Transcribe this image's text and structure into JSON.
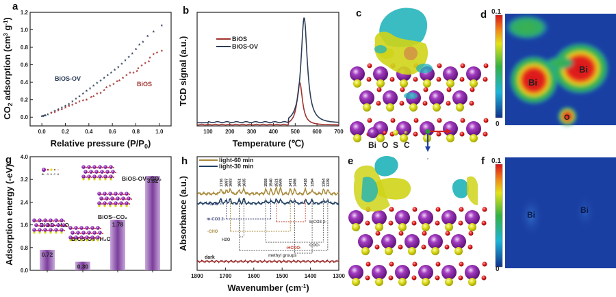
{
  "panels": {
    "a": "a",
    "b": "b",
    "c": "c",
    "d": "d",
    "e": "e",
    "f": "f",
    "g": "g",
    "h": "h"
  },
  "colors": {
    "bios": "#a1322e",
    "bios_ov": "#2b3d58",
    "light60": "#a8893a",
    "light30": "#1f3e61",
    "dark": "#9b2a2a",
    "bar": "#8f5aa8",
    "bi_atom": "#8a2a9e",
    "o_atom": "#e01b1b",
    "s_atom": "#d6d60f",
    "c_atom": "#8f6a4a",
    "iso_cyan": "#1fb3b9",
    "iso_yellow": "#cfd418",
    "map_bg": "#1a3fa3"
  },
  "chart_data": [
    {
      "id": "a",
      "type": "scatter",
      "title": "",
      "xlabel": "Relative pressure (P/P0)",
      "ylabel": "CO2 adsorption (cm3 g-1)",
      "xlim": [
        -0.1,
        1.1
      ],
      "ylim": [
        -0.1,
        1.2
      ],
      "xticks": [
        0.0,
        0.2,
        0.4,
        0.6,
        0.8,
        1.0
      ],
      "xtick_labels": [
        "0.0",
        "0.2",
        "0.4",
        "0.6",
        "0.8",
        "1.0"
      ],
      "yticks": [
        0.0,
        0.2,
        0.4,
        0.6,
        0.8,
        1.0,
        1.2
      ],
      "ytick_labels": [
        "0.0",
        "0.2",
        "0.4",
        "0.6",
        "0.8",
        "1.0",
        "1.2"
      ],
      "annotations": [
        "BiOS-OV",
        "BiOS"
      ],
      "series": [
        {
          "name": "BiOS-OV",
          "marker": "star",
          "x": [
            0.0,
            0.01,
            0.02,
            0.03,
            0.05,
            0.08,
            0.11,
            0.14,
            0.17,
            0.2,
            0.23,
            0.26,
            0.29,
            0.32,
            0.35,
            0.38,
            0.41,
            0.44,
            0.47,
            0.5,
            0.53,
            0.56,
            0.59,
            0.62,
            0.65,
            0.68,
            0.71,
            0.74,
            0.77,
            0.8,
            0.83,
            0.86,
            0.9,
            0.95,
            1.02
          ],
          "y": [
            0.0,
            0.0,
            0.01,
            0.01,
            0.02,
            0.04,
            0.06,
            0.08,
            0.1,
            0.12,
            0.14,
            0.17,
            0.2,
            0.23,
            0.26,
            0.29,
            0.32,
            0.35,
            0.38,
            0.41,
            0.44,
            0.47,
            0.5,
            0.53,
            0.56,
            0.6,
            0.64,
            0.68,
            0.72,
            0.77,
            0.82,
            0.85,
            0.92,
            0.97,
            1.04
          ]
        },
        {
          "name": "BiOS",
          "marker": "star",
          "x": [
            0.08,
            0.11,
            0.14,
            0.17,
            0.2,
            0.23,
            0.26,
            0.29,
            0.32,
            0.35,
            0.38,
            0.42,
            0.44,
            0.47,
            0.5,
            0.53,
            0.55,
            0.58,
            0.61,
            0.64,
            0.66,
            0.69,
            0.72,
            0.75,
            0.78,
            0.81,
            0.82,
            0.85,
            0.88,
            0.91,
            0.92,
            0.95,
            0.98,
            1.02
          ],
          "y": [
            0.04,
            0.05,
            0.07,
            0.08,
            0.1,
            0.12,
            0.13,
            0.15,
            0.17,
            0.18,
            0.19,
            0.22,
            0.23,
            0.26,
            0.27,
            0.3,
            0.33,
            0.35,
            0.37,
            0.4,
            0.41,
            0.44,
            0.47,
            0.5,
            0.5,
            0.52,
            0.55,
            0.58,
            0.61,
            0.63,
            0.67,
            0.71,
            0.73,
            0.75
          ]
        }
      ]
    },
    {
      "id": "b",
      "type": "line",
      "title": "",
      "xlabel": "Temperature (℃)",
      "ylabel": "TCD signal (a.u.)",
      "xlim": [
        50,
        700
      ],
      "ylim": [
        0,
        1.05
      ],
      "xticks": [
        100,
        200,
        300,
        400,
        500,
        600,
        700
      ],
      "xtick_labels": [
        "100",
        "200",
        "300",
        "400",
        "500",
        "600",
        "700"
      ],
      "legend": [
        "BiOS",
        "BiOS-OV"
      ],
      "legend_position": "top-left",
      "series": [
        {
          "name": "BiOS",
          "peak_center": 521,
          "peak_height": 0.39,
          "peak_width": 17,
          "baseline": 0.01
        },
        {
          "name": "BiOS-OV",
          "peak_center": 541,
          "peak_height": 0.97,
          "peak_width": 20,
          "baseline": 0.03
        }
      ]
    },
    {
      "id": "g",
      "type": "bar",
      "title": "",
      "xlabel": "",
      "ylabel": "Adsorption energy (-eV)",
      "ylim": [
        0,
        4.0
      ],
      "yticks": [
        0.0,
        0.8,
        1.6,
        2.4,
        3.2,
        4.0
      ],
      "ytick_labels": [
        "0.0",
        "0.8",
        "1.6",
        "2.4",
        "3.2",
        "4.0"
      ],
      "categories": [
        "BiOS··H2O",
        "BiOS-OV··H2O",
        "BiOS··CO2",
        "BiOS-OV··CO2"
      ],
      "values": [
        0.72,
        0.3,
        1.78,
        3.32
      ],
      "data_labels": [
        "0.72",
        "0.30",
        "1.78",
        "3.32"
      ],
      "inset_legend": [
        "Bi",
        "O",
        "S",
        "C",
        "H"
      ]
    },
    {
      "id": "h",
      "type": "line",
      "title": "",
      "xlabel": "Wavenumber (cm-1)",
      "ylabel": "Absorbance (a.u.)",
      "xlim": [
        1800,
        1300
      ],
      "xticks": [
        1800,
        1700,
        1600,
        1500,
        1400,
        1300
      ],
      "xtick_labels": [
        "1800",
        "1700",
        "1600",
        "1500",
        "1400",
        "1300"
      ],
      "legend": [
        "light-60 min",
        "light-30 min"
      ],
      "legend_position": "top-left",
      "series": [
        {
          "name": "light-60 min",
          "offset": 0.72
        },
        {
          "name": "light-30 min",
          "offset": 0.58
        },
        {
          "name": "dark",
          "offset": 0.07
        }
      ],
      "peak_labels": [
        "1716",
        "1697",
        "1683",
        "1651",
        "1635",
        "1558",
        "1540",
        "1521",
        "1506",
        "1471",
        "1456",
        "1418",
        "1394",
        "1354",
        "1339"
      ],
      "peak_positions": [
        1716,
        1697,
        1683,
        1651,
        1635,
        1558,
        1540,
        1521,
        1506,
        1471,
        1456,
        1418,
        1394,
        1354,
        1339
      ],
      "assignments": [
        {
          "label": "C=O",
          "peaks": [
            1716
          ],
          "color": "#3a3f78"
        },
        {
          "label": "m-CO3 2-",
          "peaks": [
            1697,
            1540
          ],
          "color": "#3a3f78"
        },
        {
          "label": "-CHO",
          "peaks": [
            1683,
            1471
          ],
          "color": "#a8893a"
        },
        {
          "label": "H2O",
          "peaks": [
            1651,
            1635
          ],
          "color": "#555"
        },
        {
          "label": "b-CO3 2-",
          "peaks": [
            1651,
            1339
          ],
          "color": "#555"
        },
        {
          "label": "-HCOO-",
          "peaks": [
            1521,
            1418
          ],
          "color": "#c03a2a"
        },
        {
          "label": "COO-",
          "peaks": [
            1558,
            1354
          ],
          "color": "#555"
        },
        {
          "label": "methyl groups",
          "peaks": [
            1456,
            1394
          ],
          "color": "#555"
        }
      ],
      "dark_label": "dark"
    }
  ],
  "structure_legend": {
    "labels": [
      "Bi",
      "O",
      "S",
      "C"
    ]
  },
  "axes_triad": {
    "a": "a",
    "c": "c"
  },
  "colormap": {
    "max_label": "0.1",
    "min_label": "0"
  },
  "map_d": {
    "atoms": [
      "Bi",
      "Bi",
      "O"
    ]
  },
  "map_f": {
    "atoms": [
      "Bi",
      "Bi"
    ]
  }
}
